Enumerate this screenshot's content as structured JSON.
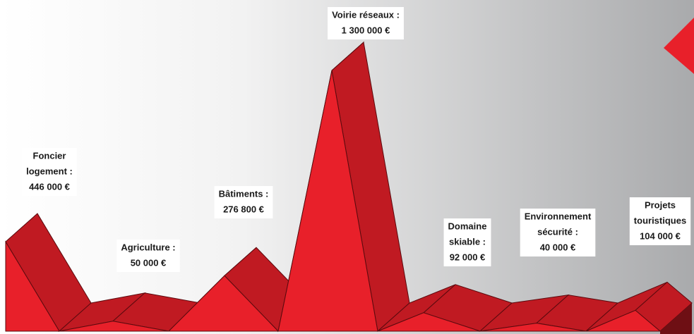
{
  "chart_data": {
    "type": "area3d",
    "categories": [
      [
        "Foncier",
        "logement :"
      ],
      [
        "Agriculture :"
      ],
      [
        "Bâtiments :"
      ],
      [
        "Voirie réseaux :"
      ],
      [
        "Domaine",
        "skiable :"
      ],
      [
        "Environnement",
        "sécurité :"
      ],
      [
        "Projets",
        "touristiques"
      ]
    ],
    "values": [
      446000,
      50000,
      276800,
      1300000,
      92000,
      40000,
      104000
    ],
    "value_labels": [
      "446 000 €",
      "50 000 €",
      "276 800 €",
      "1 300 000 €",
      "92 000 €",
      "40 000 €",
      "104 000 €"
    ],
    "color": "#e8202a",
    "side_color": "#c01a22"
  }
}
